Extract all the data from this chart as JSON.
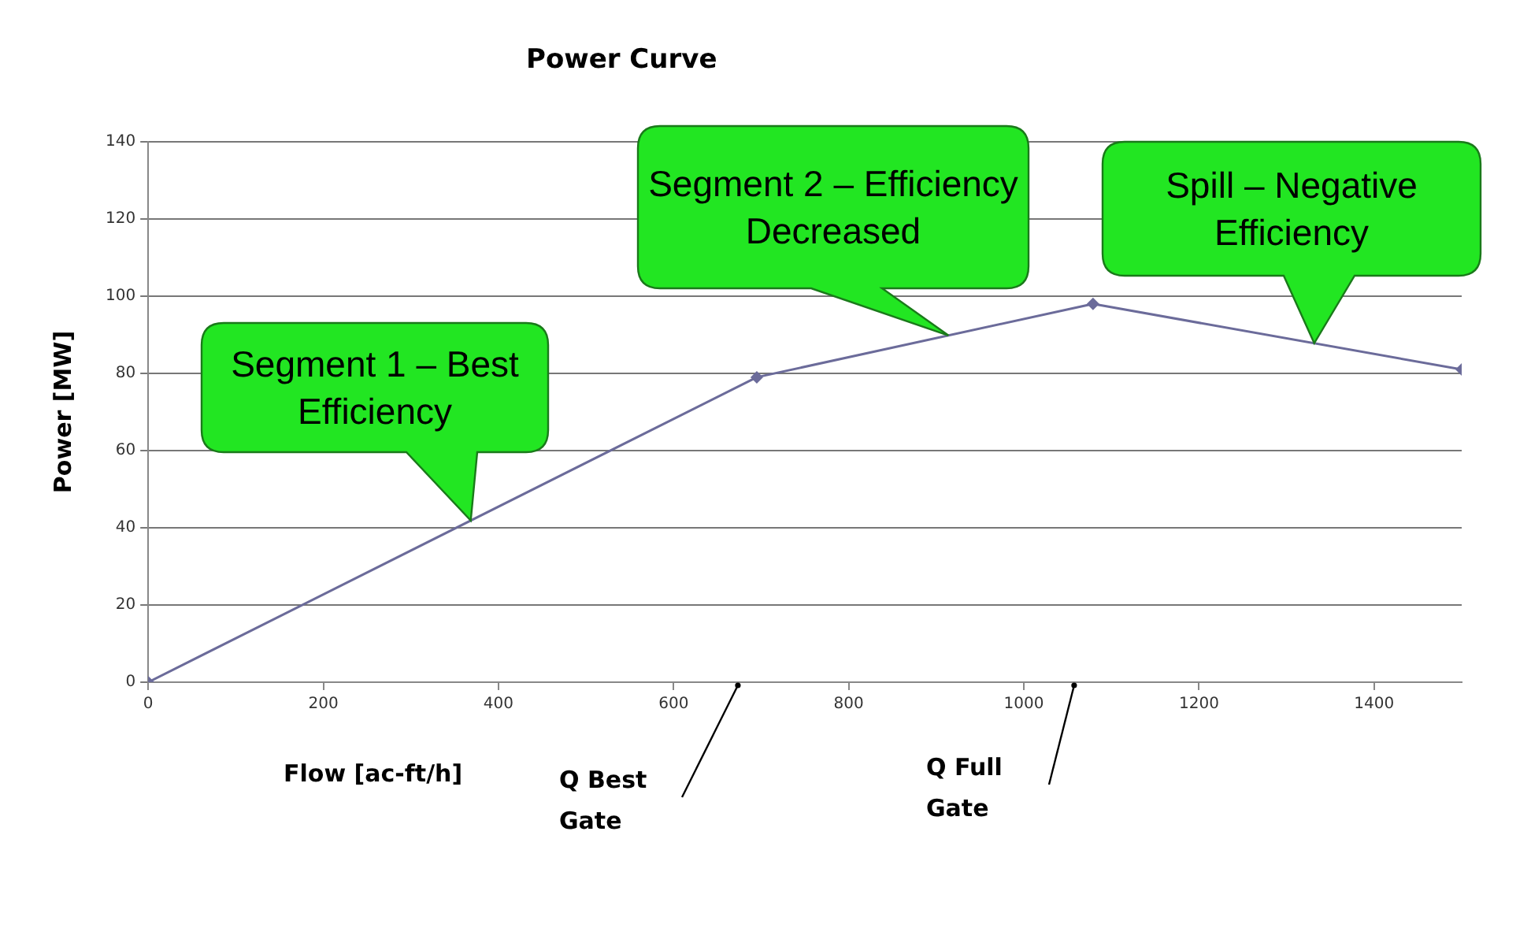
{
  "chart_data": {
    "type": "line",
    "title": "Power Curve",
    "xlabel": "Flow [ac-ft/h]",
    "ylabel": "Power [MW]",
    "x": [
      0,
      695,
      1079,
      1500
    ],
    "series": [
      {
        "color": "#6b6b9a",
        "values": [
          0,
          79,
          98,
          81
        ]
      }
    ],
    "xlim": [
      0,
      1500
    ],
    "xticks": [
      0,
      200,
      400,
      600,
      800,
      1000,
      1200,
      1400
    ],
    "ylim": [
      0,
      140
    ],
    "yticks": [
      0,
      20,
      40,
      60,
      80,
      100,
      120,
      140
    ],
    "grid": "y",
    "legend": false,
    "marker": "diamond",
    "line_style": "solid",
    "annotations": [
      "Segment 1 – Best Efficiency",
      "Segment 2 – Efficiency Decreased",
      "Spill – Negative Efficiency",
      "Q Best Gate",
      "Q Full Gate"
    ]
  }
}
